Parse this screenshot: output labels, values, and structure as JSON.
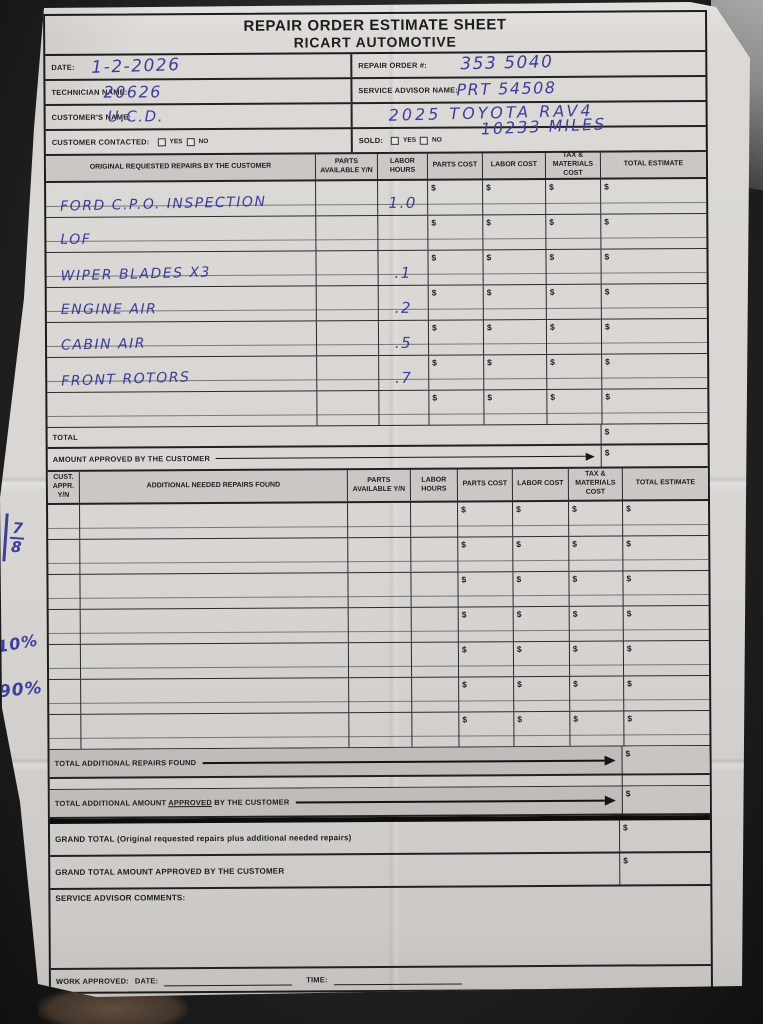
{
  "dollar": "$",
  "title": {
    "line1": "REPAIR ORDER ESTIMATE SHEET",
    "line2": "RICART AUTOMOTIVE"
  },
  "fields": {
    "date_label": "DATE:",
    "date_value": "1-2-2026",
    "repair_order_label": "REPAIR ORDER #:",
    "repair_order_value": "353 5040",
    "technician_label": "TECHNICIAN NAME:",
    "technician_value": "20626",
    "advisor_label": "SERVICE ADVISOR NAME:",
    "advisor_value": "PRT 54508",
    "customer_label": "CUSTOMER'S NAME:",
    "customer_value": "U.C.D.",
    "vehicle_value": "2025 TOYOTA RAV4",
    "contacted_label": "CUSTOMER CONTACTED:",
    "sold_label": "SOLD:",
    "mileage_value": "10233 MILES"
  },
  "checkbox": {
    "yes": "YES",
    "no": "NO"
  },
  "original_table": {
    "headers": [
      "ORIGINAL REQUESTED REPAIRS BY THE CUSTOMER",
      "PARTS AVAILABLE Y/N",
      "LABOR HOURS",
      "PARTS COST",
      "LABOR COST",
      "TAX & MATERIALS COST",
      "TOTAL ESTIMATE"
    ],
    "rows": [
      {
        "repair": "FORD C.P.O. INSPECTION",
        "labor_hours": "1.0"
      },
      {
        "repair": "LOF",
        "labor_hours": ""
      },
      {
        "repair": "WIPER BLADES X3",
        "labor_hours": ".1"
      },
      {
        "repair": "ENGINE AIR",
        "labor_hours": ".2"
      },
      {
        "repair": "CABIN AIR",
        "labor_hours": ".5"
      },
      {
        "repair": "FRONT ROTORS",
        "labor_hours": ".7"
      },
      {
        "repair": "",
        "labor_hours": ""
      }
    ],
    "total_label": "TOTAL",
    "amount_approved_label": "AMOUNT APPROVED BY THE CUSTOMER"
  },
  "additional_table": {
    "headers": [
      "CUST. APPR. Y/N",
      "ADDITIONAL NEEDED REPAIRS FOUND",
      "PARTS AVAILABLE Y/N",
      "LABOR HOURS",
      "PARTS COST",
      "LABOR COST",
      "TAX & MATERIALS COST",
      "TOTAL ESTIMATE"
    ],
    "row_count": 7,
    "total_additional_label": "TOTAL ADDITIONAL REPAIRS FOUND",
    "total_approved_pre": "TOTAL ADDITIONAL AMOUNT ",
    "total_approved_underlined": "APPROVED",
    "total_approved_post": " BY THE CUSTOMER"
  },
  "summary": {
    "grand_total_label": "GRAND TOTAL (Original requested repairs plus additional needed repairs)",
    "grand_total_approved_label": "GRAND TOTAL AMOUNT APPROVED BY THE CUSTOMER",
    "comments_label": "SERVICE ADVISOR COMMENTS:",
    "work_approved_label": "WORK APPROVED:",
    "date_label": "DATE:",
    "time_label": "TIME:"
  },
  "margin_notes": {
    "fraction_top": "7",
    "fraction_bottom": "8",
    "percent1": "10%",
    "percent2": "90%"
  },
  "colors": {
    "ink_blue": "#3c3f9e",
    "paper": "#d8d5d2",
    "header_fill": "#cac7c4",
    "band_fill": "#bfbcb9",
    "photo_background": "#242424"
  }
}
